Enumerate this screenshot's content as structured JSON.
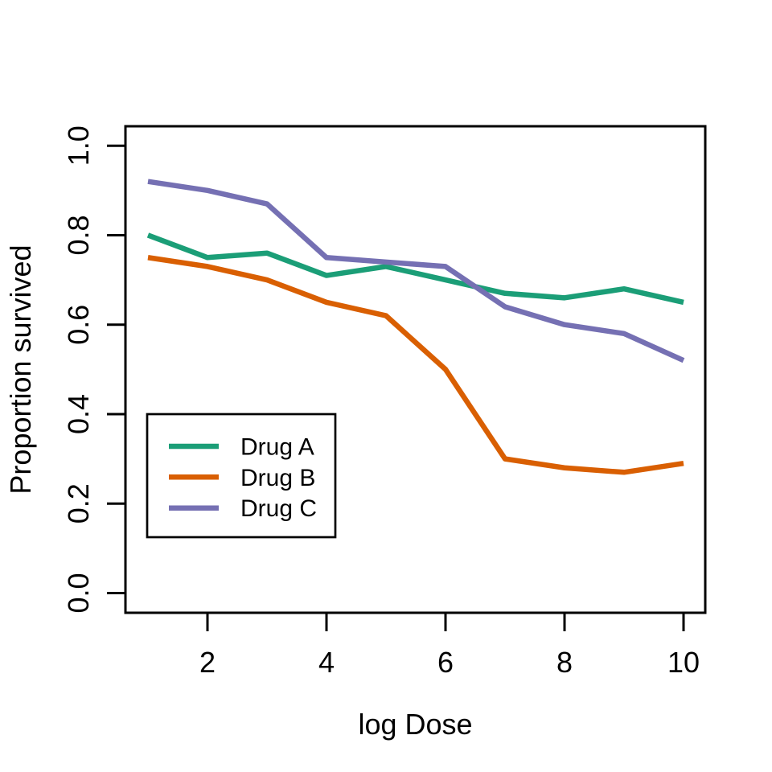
{
  "chart_data": {
    "type": "line",
    "title": "",
    "xlabel": "log Dose",
    "ylabel": "Proportion survived",
    "x": [
      1,
      2,
      3,
      4,
      5,
      6,
      7,
      8,
      9,
      10
    ],
    "xlim": [
      1,
      10
    ],
    "ylim": [
      0.0,
      1.0
    ],
    "x_ticks": [
      2,
      4,
      6,
      8,
      10
    ],
    "x_tick_labels": [
      "2",
      "4",
      "6",
      "8",
      "10"
    ],
    "y_ticks": [
      0.0,
      0.2,
      0.4,
      0.6,
      0.8,
      1.0
    ],
    "y_tick_labels": [
      "0.0",
      "0.2",
      "0.4",
      "0.6",
      "0.8",
      "1.0"
    ],
    "grid": false,
    "legend_position": "inside-left-middle",
    "series": [
      {
        "name": "Drug A",
        "color": "#1B9E77",
        "values": [
          0.8,
          0.75,
          0.76,
          0.71,
          0.73,
          0.7,
          0.67,
          0.66,
          0.68,
          0.65
        ]
      },
      {
        "name": "Drug B",
        "color": "#D95F02",
        "values": [
          0.75,
          0.73,
          0.7,
          0.65,
          0.62,
          0.5,
          0.3,
          0.28,
          0.27,
          0.29
        ]
      },
      {
        "name": "Drug C",
        "color": "#7570B3",
        "values": [
          0.92,
          0.9,
          0.87,
          0.75,
          0.74,
          0.73,
          0.64,
          0.6,
          0.58,
          0.52
        ]
      }
    ]
  },
  "colors": {
    "background": "#ffffff",
    "axis": "#000000",
    "text": "#000000",
    "legend_border": "#000000"
  }
}
